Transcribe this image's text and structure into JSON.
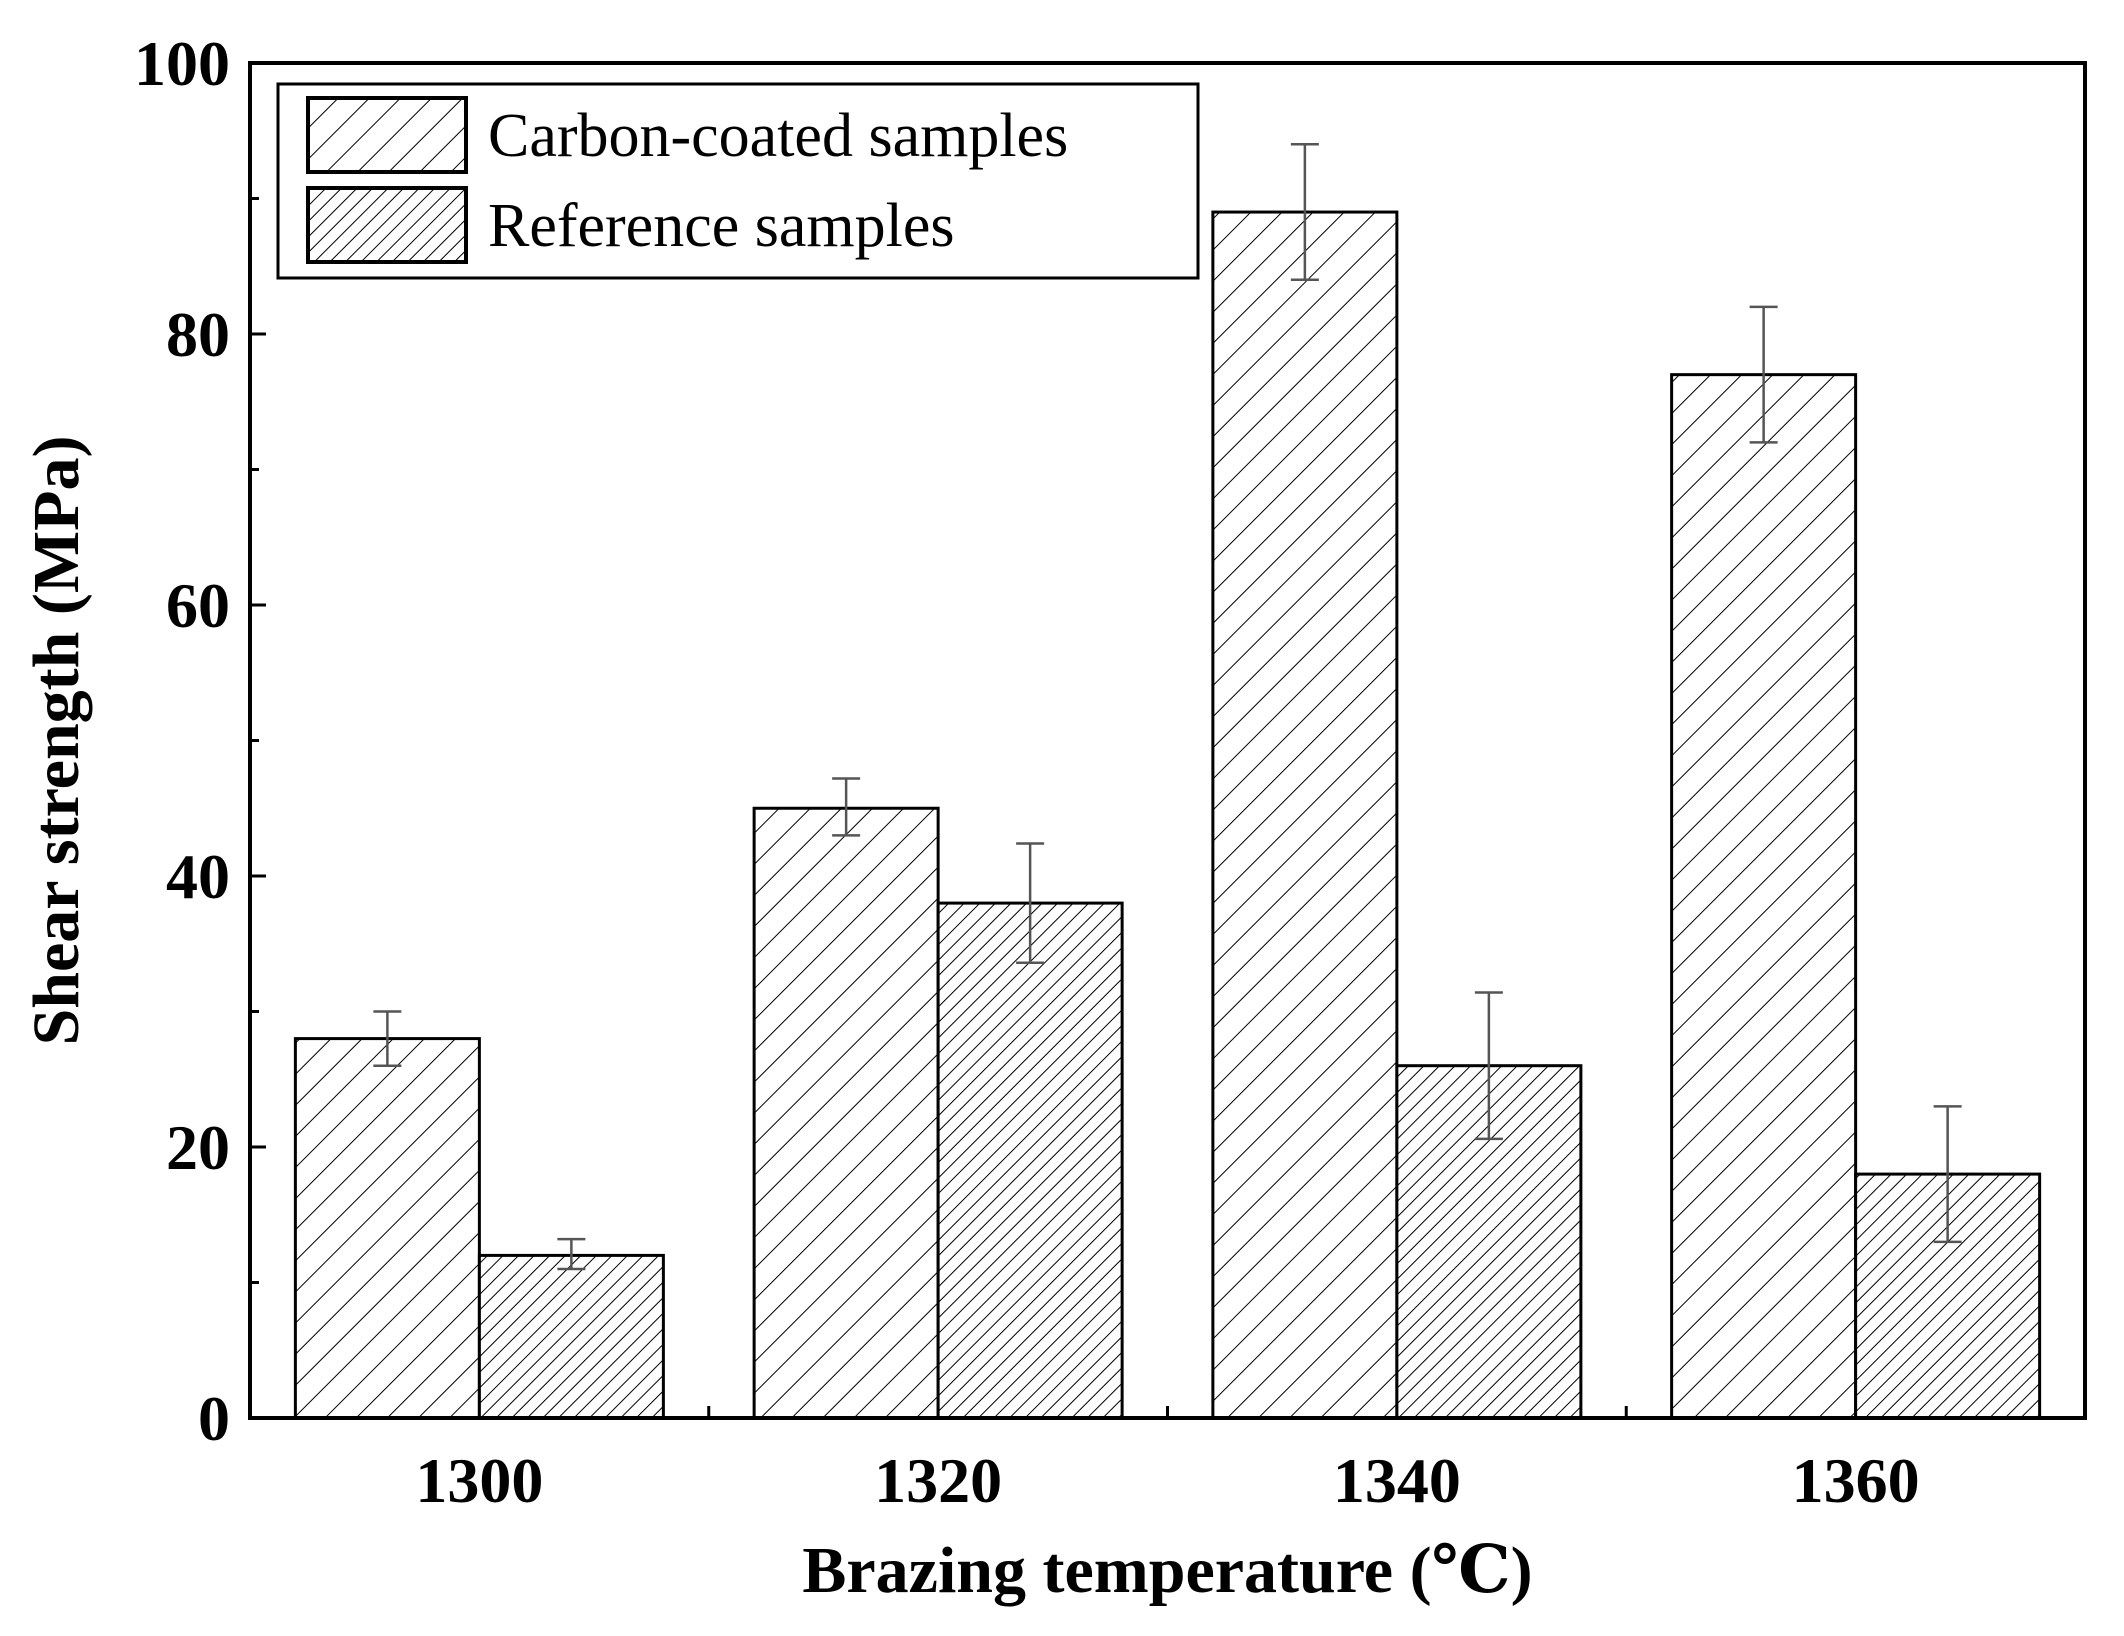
{
  "chart_data": {
    "type": "bar",
    "title": "",
    "xlabel": "Brazing temperature (℃)",
    "ylabel": "Shear strength (MPa)",
    "categories": [
      "1300",
      "1320",
      "1340",
      "1360"
    ],
    "ylim": [
      0,
      100
    ],
    "yticks": [
      "0",
      "20",
      "40",
      "60",
      "80",
      "100"
    ],
    "grid": false,
    "legend_position": "top-left",
    "series": [
      {
        "name": "Carbon-coated samples",
        "values": [
          28,
          45,
          89,
          77
        ],
        "error_low": [
          26,
          43,
          84,
          72
        ],
        "error_high": [
          30,
          47.2,
          94,
          82
        ],
        "pattern": "sparse-diagonal-hatch"
      },
      {
        "name": "Reference samples",
        "values": [
          12,
          38,
          26,
          18
        ],
        "error_low": [
          11,
          33.6,
          20.6,
          13
        ],
        "error_high": [
          13.2,
          42.4,
          31.4,
          23
        ],
        "pattern": "dense-diagonal-hatch"
      }
    ],
    "colors": {
      "bar_fill": "#ffffff",
      "bar_stroke": "#000000",
      "errorbar": "#555555"
    }
  }
}
